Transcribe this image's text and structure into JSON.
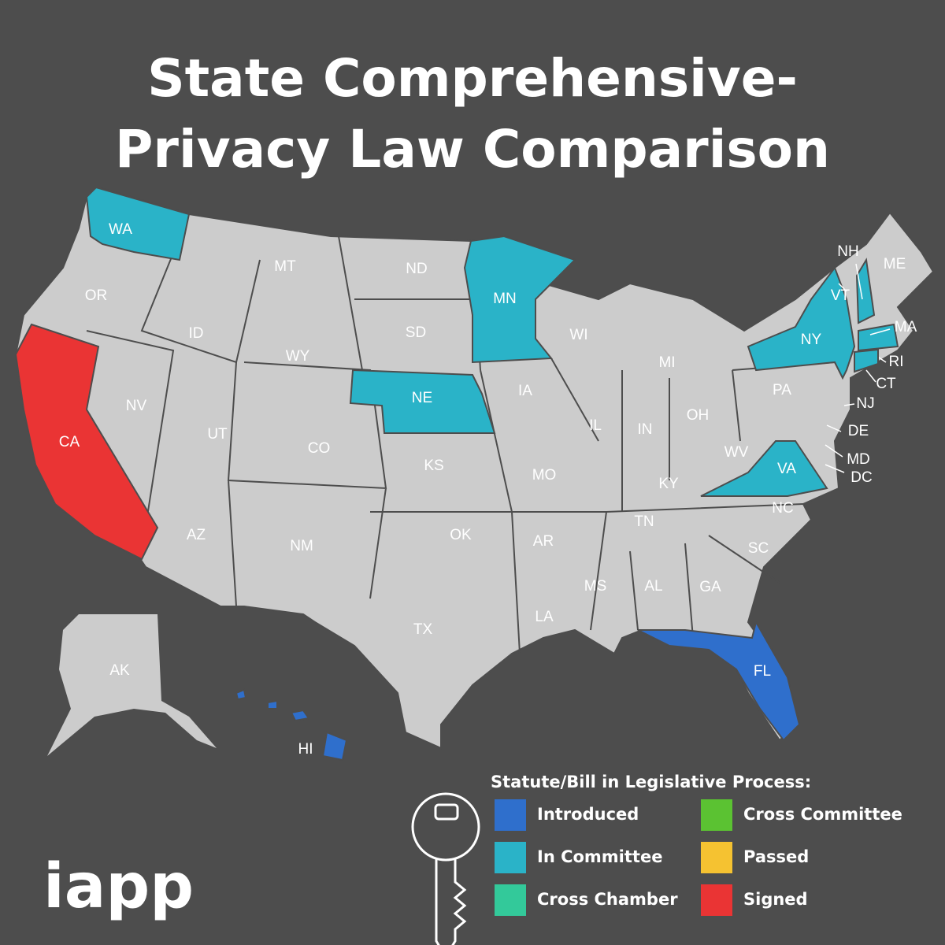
{
  "title": [
    "State Comprehensive-",
    "Privacy Law Comparison"
  ],
  "states": [
    {
      "label": "WA",
      "color": "#2ab3c8"
    },
    {
      "label": "OR",
      "color": "#cccccc"
    },
    {
      "label": "CA",
      "color": "#ea3434"
    },
    {
      "label": "NV",
      "color": "#cccccc"
    },
    {
      "label": "ID",
      "color": "#cccccc"
    },
    {
      "label": "MT",
      "color": "#cccccc"
    },
    {
      "label": "WY",
      "color": "#cccccc"
    },
    {
      "label": "UT",
      "color": "#cccccc"
    },
    {
      "label": "CO",
      "color": "#cccccc"
    },
    {
      "label": "AZ",
      "color": "#cccccc"
    },
    {
      "label": "NM",
      "color": "#cccccc"
    },
    {
      "label": "ND",
      "color": "#cccccc"
    },
    {
      "label": "SD",
      "color": "#cccccc"
    },
    {
      "label": "NE",
      "color": "#2ab3c8"
    },
    {
      "label": "KS",
      "color": "#cccccc"
    },
    {
      "label": "OK",
      "color": "#cccccc"
    },
    {
      "label": "TX",
      "color": "#cccccc"
    },
    {
      "label": "MN",
      "color": "#2ab3c8"
    },
    {
      "label": "IA",
      "color": "#cccccc"
    },
    {
      "label": "MO",
      "color": "#cccccc"
    },
    {
      "label": "AR",
      "color": "#cccccc"
    },
    {
      "label": "LA",
      "color": "#cccccc"
    },
    {
      "label": "WI",
      "color": "#cccccc"
    },
    {
      "label": "IL",
      "color": "#cccccc"
    },
    {
      "label": "MS",
      "color": "#cccccc"
    },
    {
      "label": "AL",
      "color": "#cccccc"
    },
    {
      "label": "TN",
      "color": "#cccccc"
    },
    {
      "label": "KY",
      "color": "#cccccc"
    },
    {
      "label": "IN",
      "color": "#cccccc"
    },
    {
      "label": "MI",
      "color": "#cccccc"
    },
    {
      "label": "OH",
      "color": "#cccccc"
    },
    {
      "label": "GA",
      "color": "#cccccc"
    },
    {
      "label": "FL",
      "color": "#2f6fcc"
    },
    {
      "label": "SC",
      "color": "#cccccc"
    },
    {
      "label": "NC",
      "color": "#cccccc"
    },
    {
      "label": "VA",
      "color": "#2ab3c8"
    },
    {
      "label": "WV",
      "color": "#cccccc"
    },
    {
      "label": "PA",
      "color": "#cccccc"
    },
    {
      "label": "NY",
      "color": "#2ab3c8"
    },
    {
      "label": "VT",
      "color": "#cccccc"
    },
    {
      "label": "NH",
      "color": "#2ab3c8"
    },
    {
      "label": "ME",
      "color": "#cccccc"
    },
    {
      "label": "MA",
      "color": "#2ab3c8"
    },
    {
      "label": "RI",
      "color": "#cccccc"
    },
    {
      "label": "CT",
      "color": "#2ab3c8"
    },
    {
      "label": "NJ",
      "color": "#cccccc"
    },
    {
      "label": "DE",
      "color": "#cccccc"
    },
    {
      "label": "MD",
      "color": "#cccccc"
    },
    {
      "label": "DC",
      "color": "#cccccc"
    },
    {
      "label": "AK",
      "color": "#cccccc"
    },
    {
      "label": "HI",
      "color": "#2f6fcc"
    }
  ],
  "legend": {
    "title": "Statute/Bill in Legislative Process:",
    "items": [
      {
        "name": "Introduced",
        "color": "#2f6fcc"
      },
      {
        "name": "In Committee",
        "color": "#2ab3c8"
      },
      {
        "name": "Cross Chamber",
        "color": "#33c99a"
      },
      {
        "name": "Cross Committee",
        "color": "#5bc232"
      },
      {
        "name": "Passed",
        "color": "#f5c231"
      },
      {
        "name": "Signed",
        "color": "#ea3434"
      }
    ]
  },
  "logo": "iapp"
}
